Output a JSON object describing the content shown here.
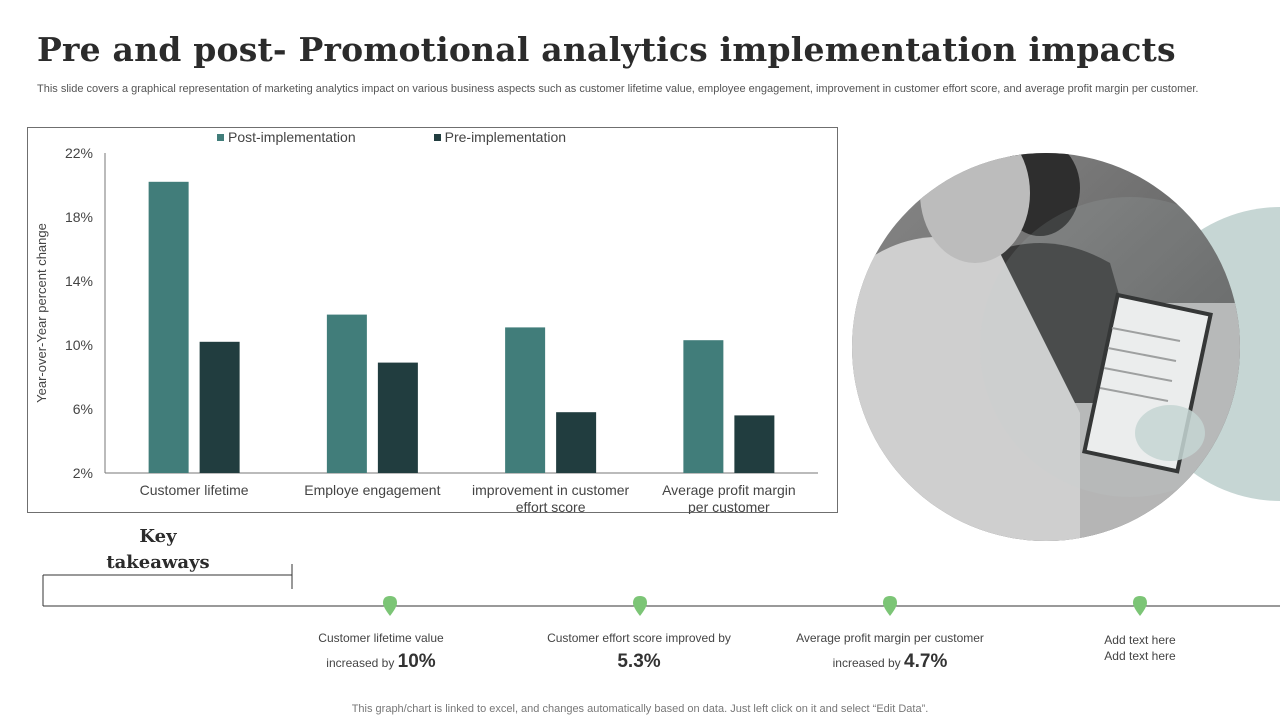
{
  "title": "Pre and post- Promotional analytics implementation impacts",
  "subtitle": "This slide covers a graphical representation of marketing analytics impact on various business aspects such as customer lifetime value, employee engagement, improvement in customer effort score, and average profit margin per customer.",
  "colors": {
    "post": "#417d7a",
    "pre": "#213d3f",
    "accent": "#7cc576",
    "circle": "#c6d6d4"
  },
  "chart_data": {
    "type": "bar",
    "categories": [
      "Customer lifetime",
      "Employe engagement",
      "improvement in customer effort score",
      "Average profit margin per customer"
    ],
    "series": [
      {
        "name": "Post-implementation",
        "values": [
          20.2,
          11.9,
          11.1,
          10.3
        ]
      },
      {
        "name": "Pre-implementation",
        "values": [
          10.2,
          8.9,
          5.8,
          5.6
        ]
      }
    ],
    "ylabel": "Year-over-Year percent change",
    "xlabel": "",
    "ylim": [
      2,
      22
    ],
    "yticks": [
      "2%",
      "6%",
      "10%",
      "14%",
      "18%",
      "22%"
    ],
    "ytick_values": [
      2,
      6,
      10,
      14,
      18,
      22
    ],
    "grid": false,
    "legend": "top"
  },
  "key_takeaways": {
    "title": "Key takeaways",
    "items": [
      {
        "line1": "Customer lifetime value",
        "line2": "increased by",
        "value": "10%"
      },
      {
        "line1": "Customer effort score improved by",
        "line2": "",
        "value": "5.3%"
      },
      {
        "line1": "Average profit margin per customer",
        "line2": "increased by",
        "value": "4.7%"
      },
      {
        "line1": "Add text here",
        "line2": "Add text here",
        "value": ""
      }
    ]
  },
  "footer": "This graph/chart is linked to excel, and changes automatically based on data. Just left click on it and select “Edit Data”."
}
